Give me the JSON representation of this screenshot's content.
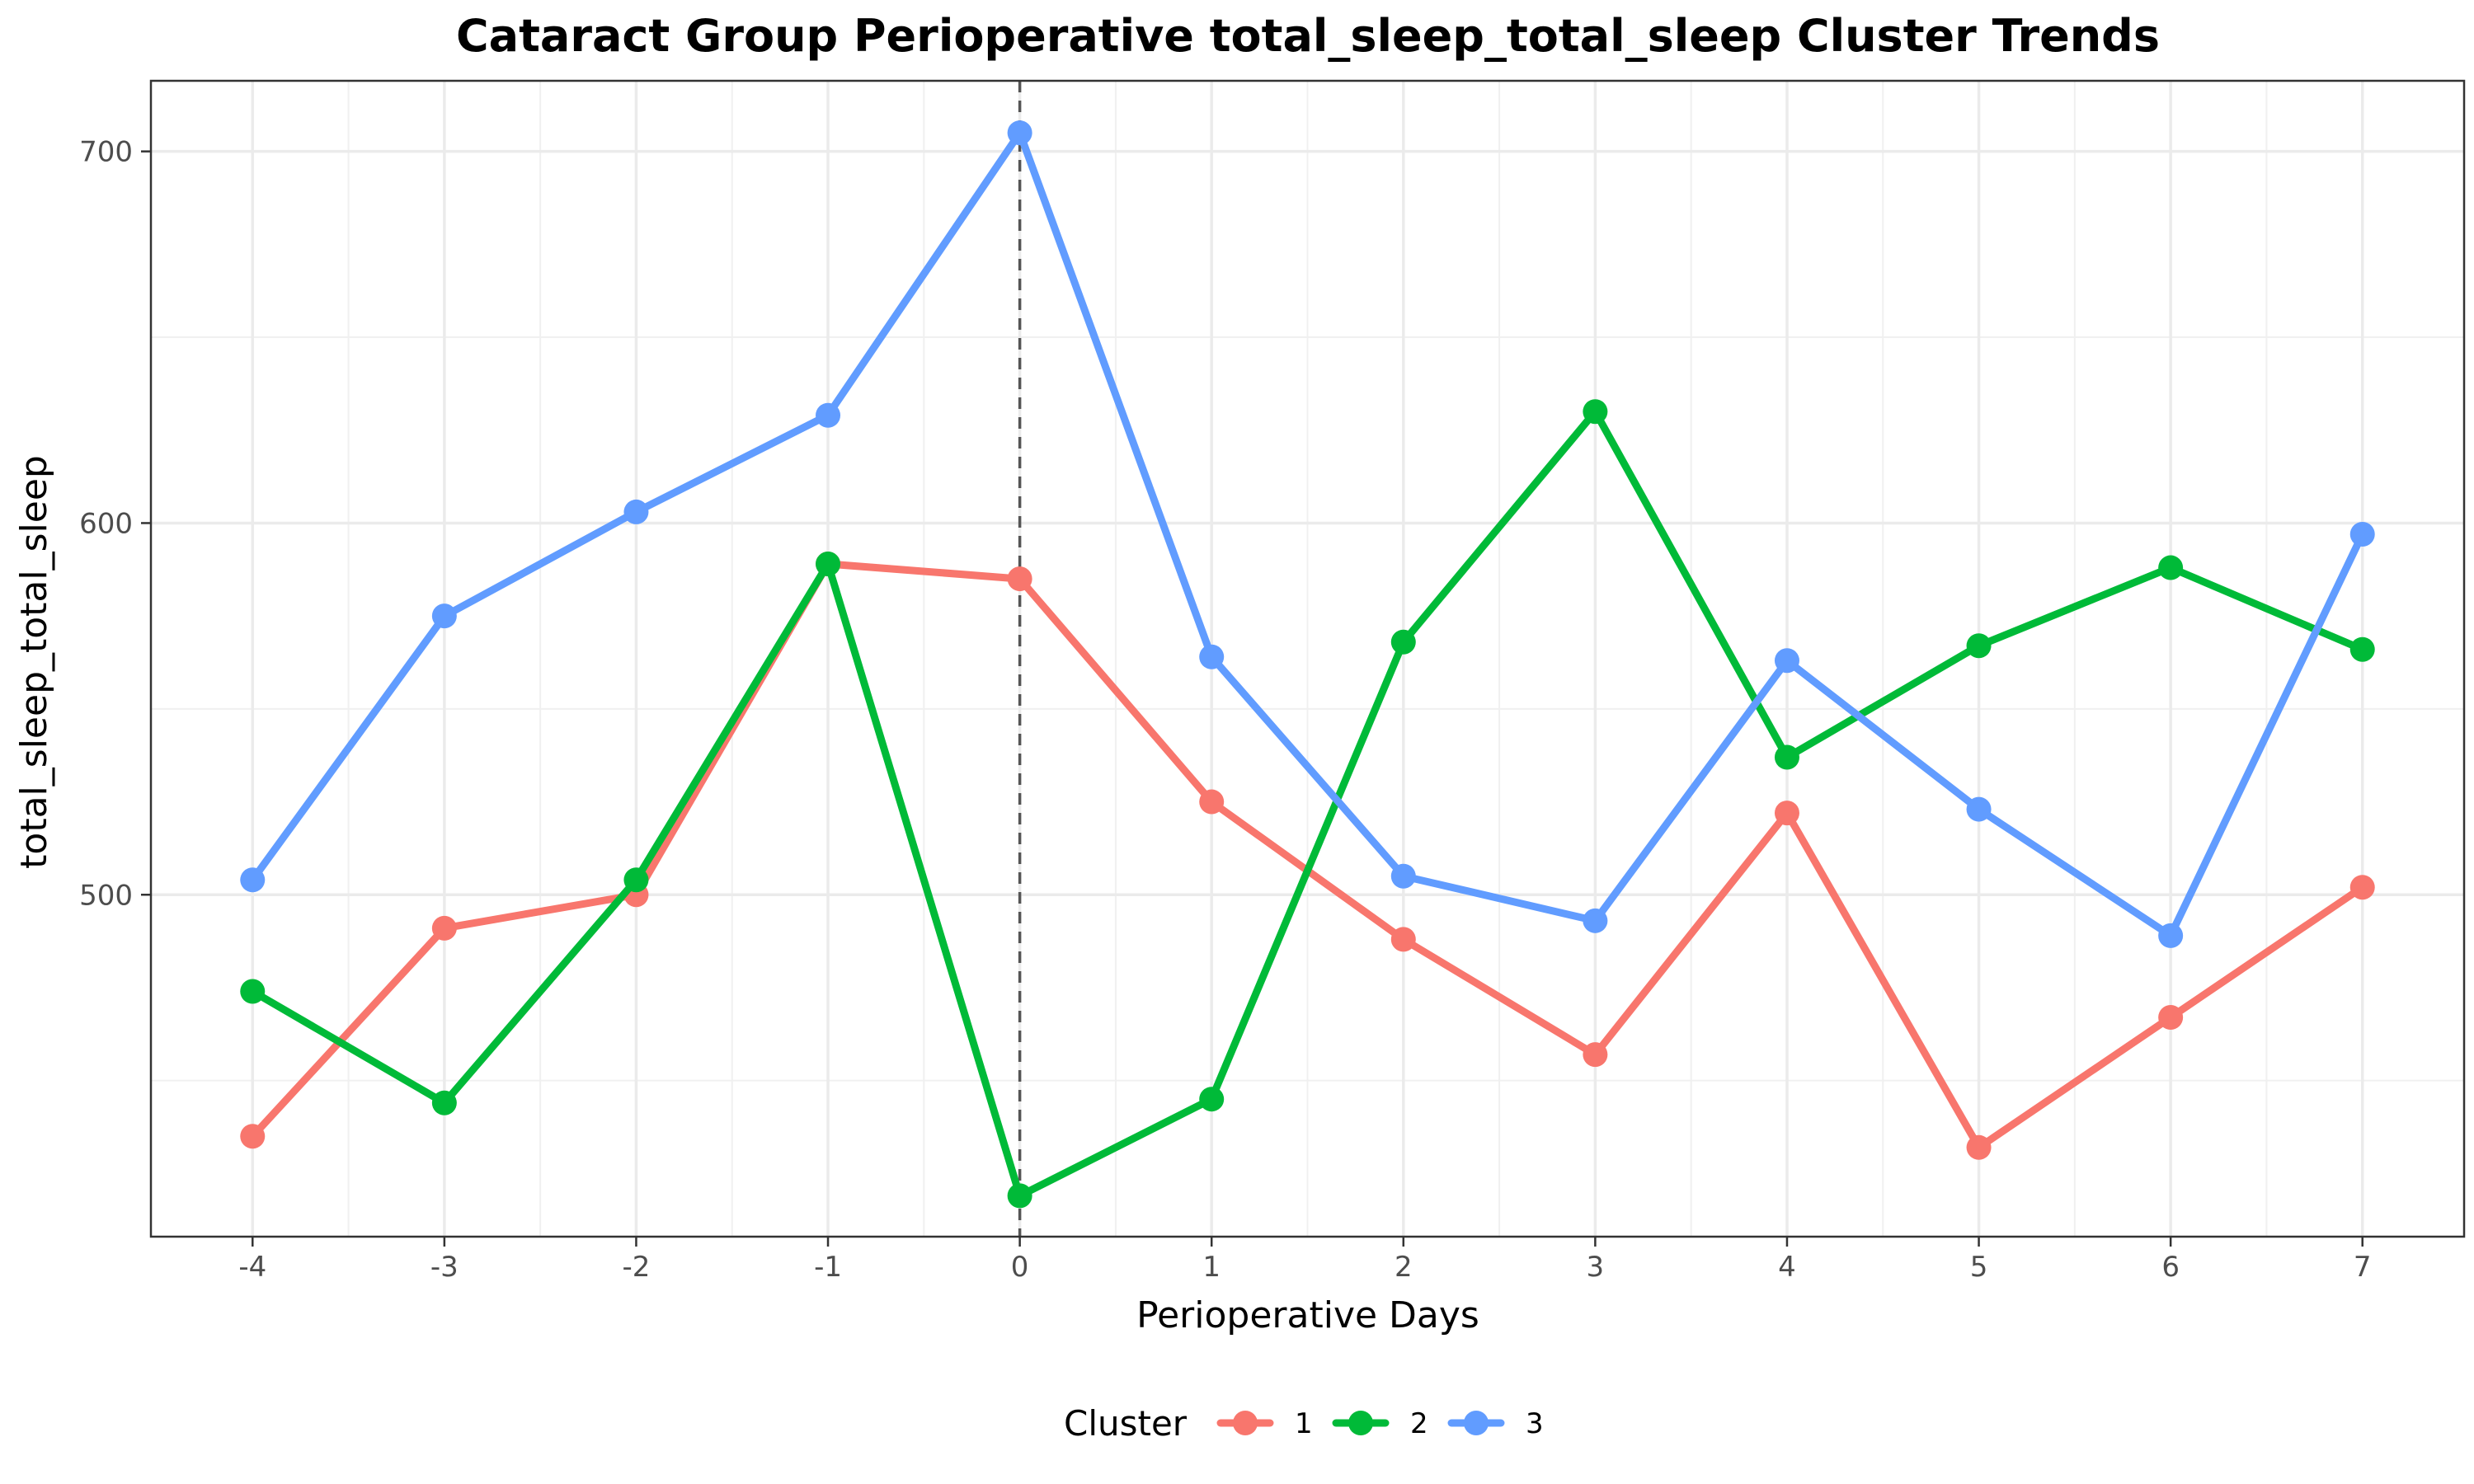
{
  "chart_data": {
    "type": "line",
    "title": "Cataract Group Perioperative total_sleep_total_sleep Cluster Trends",
    "xlabel": "Perioperative Days",
    "ylabel": "total_sleep_total_sleep",
    "x": [
      -4,
      -3,
      -2,
      -1,
      0,
      1,
      2,
      3,
      4,
      5,
      6,
      7
    ],
    "x_tick_labels": [
      "-4",
      "-3",
      "-2",
      "-1",
      "0",
      "1",
      "2",
      "3",
      "4",
      "5",
      "6",
      "7"
    ],
    "xlim": [
      -4.53,
      7.53
    ],
    "ylim": [
      408,
      719
    ],
    "y_ticks": [
      500,
      600,
      700
    ],
    "y_tick_labels": [
      "500",
      "600",
      "700"
    ],
    "y_minor_ticks": [
      450,
      550,
      650
    ],
    "vline_x": 0,
    "grid": true,
    "legend": {
      "title": "Cluster",
      "position": "bottom"
    },
    "series": [
      {
        "name": "1",
        "color": "#F8766D",
        "values": [
          435,
          491,
          500,
          589,
          585,
          525,
          488,
          457,
          522,
          432,
          467,
          502
        ]
      },
      {
        "name": "2",
        "color": "#00BA38",
        "values": [
          474,
          444,
          504,
          589,
          419,
          445,
          568,
          630,
          537,
          567,
          588,
          566
        ]
      },
      {
        "name": "3",
        "color": "#619CFF",
        "values": [
          504,
          575,
          603,
          629,
          705,
          564,
          505,
          493,
          563,
          523,
          489,
          597
        ]
      }
    ]
  }
}
